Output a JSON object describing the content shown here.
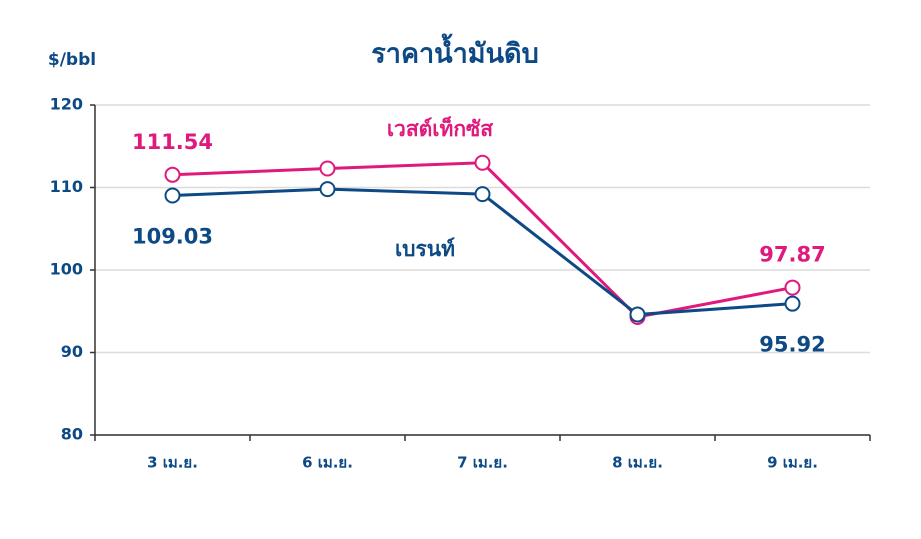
{
  "chart_data": {
    "type": "line",
    "title": "ราคาน้ำมันดิบ",
    "y_label": "$/bbl",
    "categories": [
      "3 เม.ย.",
      "6 เม.ย.",
      "7 เม.ย.",
      "8 เม.ย.",
      "9 เม.ย."
    ],
    "series": [
      {
        "name": "เวสต์เท็กซัส",
        "color": "#e0197d",
        "values": [
          111.54,
          112.3,
          113.0,
          94.3,
          97.87
        ],
        "value_labels": [
          "111.54",
          null,
          null,
          null,
          "97.87"
        ]
      },
      {
        "name": "เบรนท์",
        "color": "#0d4a85",
        "values": [
          109.03,
          109.8,
          109.2,
          94.6,
          95.92
        ],
        "value_labels": [
          "109.03",
          null,
          null,
          null,
          "95.92"
        ]
      }
    ],
    "ylim": [
      80,
      120
    ],
    "yticks": [
      80,
      90,
      100,
      110,
      120
    ],
    "grid": true
  }
}
